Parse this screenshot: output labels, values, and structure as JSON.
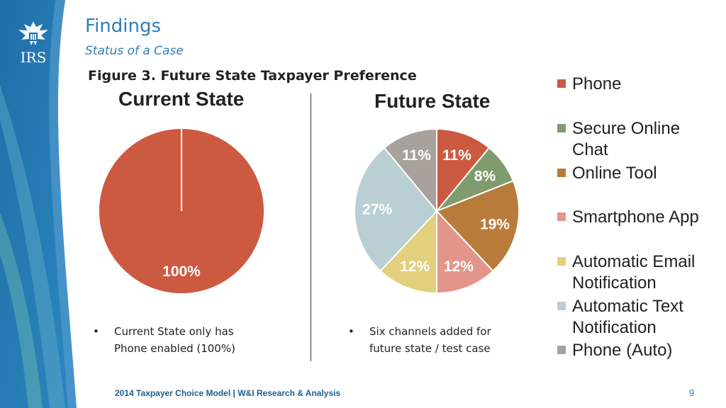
{
  "header": {
    "title": "Findings",
    "subtitle": "Status of a Case",
    "figure_title": "Figure 3. Future State Taxpayer Preference",
    "logo_text": "IRS"
  },
  "colors": {
    "Phone": "#cc5a41",
    "Secure Online Chat": "#7f9c6e",
    "Online Tool": "#b87b3a",
    "Smartphone App": "#e3958b",
    "Automatic Email Notification": "#e3d07c",
    "Automatic Text Notification": "#b9cfd4",
    "Phone (Auto)": "#a8a19c",
    "sidebar_blue": "#2f7fb6",
    "title_blue": "#2f7fb6"
  },
  "chart_data": [
    {
      "type": "pie",
      "title": "Current State",
      "slices": [
        {
          "label": "Phone",
          "value": 100,
          "display": "100%"
        }
      ]
    },
    {
      "type": "pie",
      "title": "Future State",
      "slices": [
        {
          "label": "Phone",
          "value": 11,
          "display": "11%"
        },
        {
          "label": "Secure Online Chat",
          "value": 8,
          "display": "8%"
        },
        {
          "label": "Online Tool",
          "value": 19,
          "display": "19%"
        },
        {
          "label": "Smartphone App",
          "value": 12,
          "display": "12%"
        },
        {
          "label": "Automatic Email Notification",
          "value": 12,
          "display": "12%"
        },
        {
          "label": "Automatic Text Notification",
          "value": 27,
          "display": "27%"
        },
        {
          "label": "Phone (Auto)",
          "value": 11,
          "display": "11%"
        }
      ]
    }
  ],
  "legend": [
    {
      "key": "Phone",
      "lines": [
        "Phone"
      ]
    },
    {
      "key": "Secure Online Chat",
      "lines": [
        "Secure Online",
        "Chat"
      ]
    },
    {
      "key": "Online Tool",
      "lines": [
        "Online Tool"
      ]
    },
    {
      "key": "Smartphone App",
      "lines": [
        "Smartphone App"
      ]
    },
    {
      "key": "Automatic Email Notification",
      "lines": [
        "Automatic Email",
        "Notification"
      ]
    },
    {
      "key": "Automatic Text Notification",
      "lines": [
        "Automatic Text",
        "Notification"
      ]
    },
    {
      "key": "Phone (Auto)",
      "lines": [
        "Phone (Auto)"
      ]
    }
  ],
  "bullets": {
    "left": {
      "marker": "•",
      "lines": [
        "Current State only has",
        "Phone enabled (100%)"
      ]
    },
    "right": {
      "marker": "•",
      "lines": [
        "Six channels added for",
        "future state / test case"
      ]
    }
  },
  "footer": {
    "text": "2014 Taxpayer Choice Model | W&I Research & Analysis",
    "page_number": "9"
  }
}
